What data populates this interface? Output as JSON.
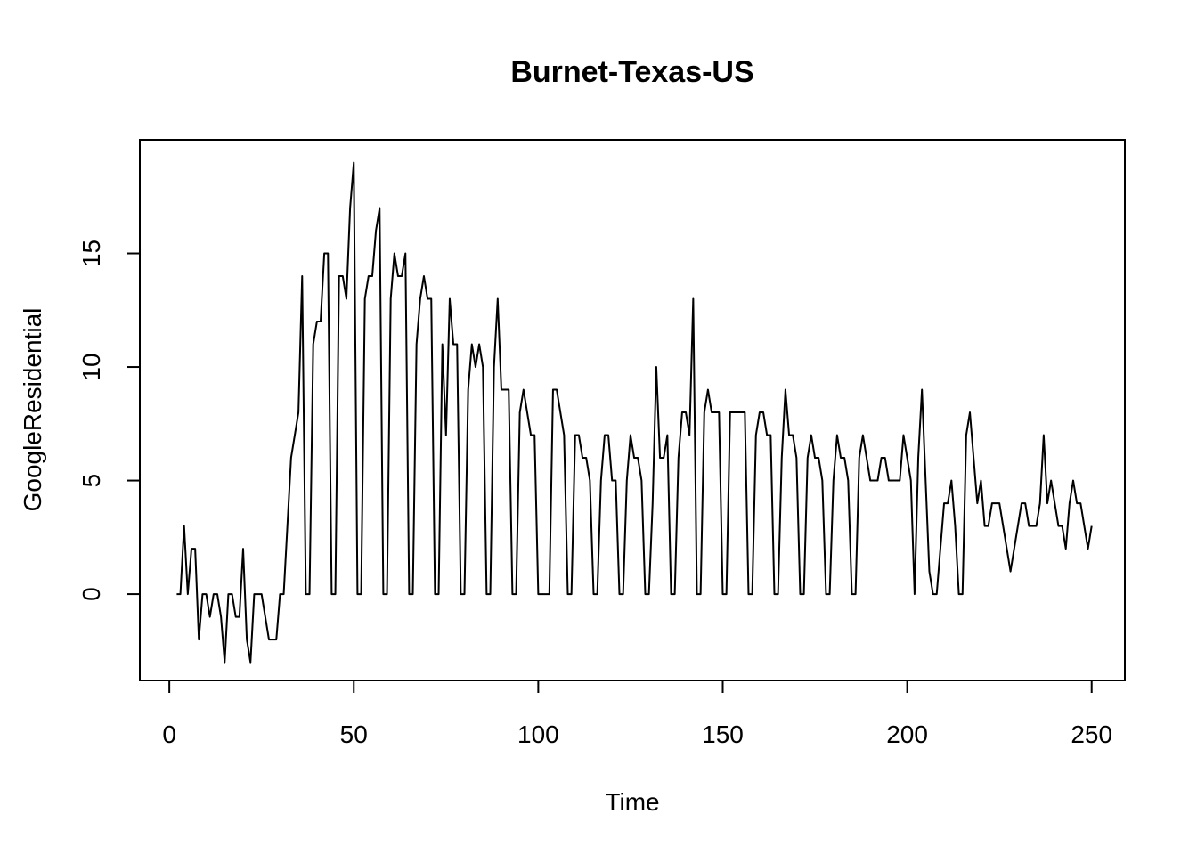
{
  "chart_data": {
    "type": "line",
    "title": "Burnet-Texas-US",
    "xlabel": "Time",
    "ylabel": "GoogleResidential",
    "xlim": [
      -8,
      259
    ],
    "ylim": [
      -3.8,
      20
    ],
    "x_ticks": [
      0,
      50,
      100,
      150,
      200,
      250
    ],
    "y_ticks": [
      0,
      5,
      10,
      15
    ],
    "grid": false,
    "legend": "none",
    "line_color": "#000000",
    "x_start": 2,
    "series": [
      {
        "values": [
          0,
          0,
          3,
          0,
          2,
          2,
          -2,
          0,
          0,
          -1,
          0,
          0,
          -1,
          -3,
          0,
          0,
          -1,
          -1,
          2,
          -2,
          -3,
          0,
          0,
          0,
          -1,
          -2,
          -2,
          -2,
          0,
          0,
          3,
          6,
          7,
          8,
          14,
          0,
          0,
          11,
          12,
          12,
          15,
          15,
          0,
          0,
          14,
          14,
          13,
          17,
          19,
          0,
          0,
          13,
          14,
          14,
          16,
          17,
          0,
          0,
          13,
          15,
          14,
          14,
          15,
          0,
          0,
          11,
          13,
          14,
          13,
          13,
          0,
          0,
          11,
          7,
          13,
          11,
          11,
          0,
          0,
          9,
          11,
          10,
          11,
          10,
          0,
          0,
          10,
          13,
          9,
          9,
          9,
          0,
          0,
          8,
          9,
          8,
          7,
          7,
          0,
          0,
          0,
          0,
          9,
          9,
          8,
          7,
          0,
          0,
          7,
          7,
          6,
          6,
          5,
          0,
          0,
          5,
          7,
          7,
          5,
          5,
          0,
          0,
          5,
          7,
          6,
          6,
          5,
          0,
          0,
          4,
          10,
          6,
          6,
          7,
          0,
          0,
          6,
          8,
          8,
          7,
          13,
          0,
          0,
          8,
          9,
          8,
          8,
          8,
          0,
          0,
          8,
          8,
          8,
          8,
          8,
          0,
          0,
          7,
          8,
          8,
          7,
          7,
          0,
          0,
          6,
          9,
          7,
          7,
          6,
          0,
          0,
          6,
          7,
          6,
          6,
          5,
          0,
          0,
          5,
          7,
          6,
          6,
          5,
          0,
          0,
          6,
          7,
          6,
          5,
          5,
          5,
          6,
          6,
          5,
          5,
          5,
          5,
          7,
          6,
          5,
          0,
          6,
          9,
          5,
          1,
          0,
          0,
          2,
          4,
          4,
          5,
          3,
          0,
          0,
          7,
          8,
          6,
          4,
          5,
          3,
          3,
          4,
          4,
          4,
          3,
          2,
          1,
          2,
          3,
          4,
          4,
          3,
          3,
          3,
          4,
          7,
          4,
          5,
          4,
          3,
          3,
          2,
          4,
          5,
          4,
          4,
          3,
          2,
          3
        ]
      }
    ]
  }
}
